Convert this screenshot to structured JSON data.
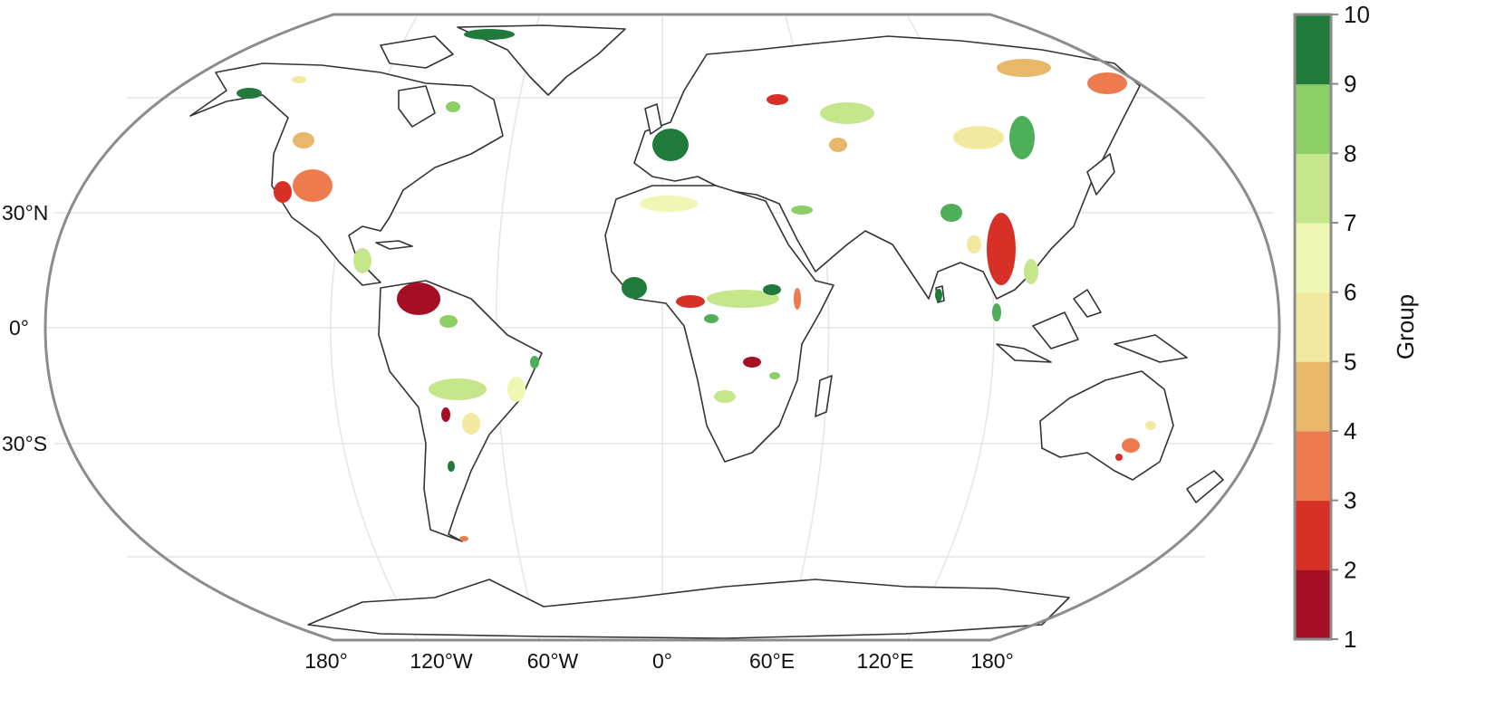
{
  "map": {
    "lat_labels": [
      "30°N",
      "0°",
      "30°S"
    ],
    "lon_labels": [
      "180°",
      "120°W",
      "60°W",
      "0°",
      "60°E",
      "120°E",
      "180°"
    ]
  },
  "legend": {
    "title": "Group",
    "tick_labels": [
      "1",
      "2",
      "3",
      "4",
      "5",
      "6",
      "7",
      "8",
      "9",
      "10"
    ],
    "colors": [
      "#a50f26",
      "#d73027",
      "#ee7b4e",
      "#e9b76a",
      "#f2e9a0",
      "#f0f6b4",
      "#c5e68a",
      "#8ccf66",
      "#4fae5a",
      "#1f7a3c"
    ]
  }
}
